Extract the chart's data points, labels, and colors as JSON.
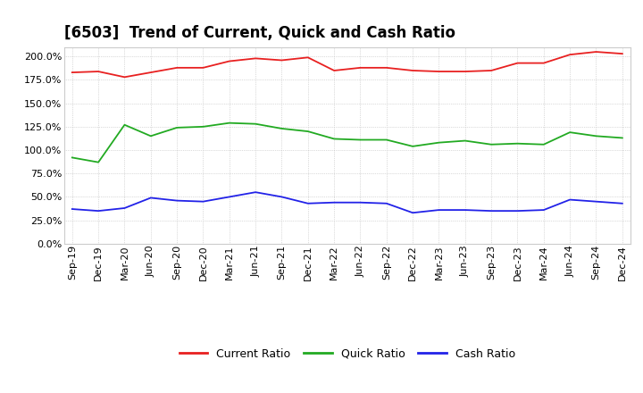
{
  "title": "[6503]  Trend of Current, Quick and Cash Ratio",
  "x_labels": [
    "Sep-19",
    "Dec-19",
    "Mar-20",
    "Jun-20",
    "Sep-20",
    "Dec-20",
    "Mar-21",
    "Jun-21",
    "Sep-21",
    "Dec-21",
    "Mar-22",
    "Jun-22",
    "Sep-22",
    "Dec-22",
    "Mar-23",
    "Jun-23",
    "Sep-23",
    "Dec-23",
    "Mar-24",
    "Jun-24",
    "Sep-24",
    "Dec-24"
  ],
  "current_ratio": [
    183,
    184,
    178,
    183,
    188,
    188,
    195,
    198,
    196,
    199,
    185,
    188,
    188,
    185,
    184,
    184,
    185,
    193,
    193,
    202,
    205,
    203
  ],
  "quick_ratio": [
    92,
    87,
    127,
    115,
    124,
    125,
    129,
    128,
    123,
    120,
    112,
    111,
    111,
    104,
    108,
    110,
    106,
    107,
    106,
    119,
    115,
    113
  ],
  "cash_ratio": [
    37,
    35,
    38,
    49,
    46,
    45,
    50,
    55,
    50,
    43,
    44,
    44,
    43,
    33,
    36,
    36,
    35,
    35,
    36,
    47,
    45,
    43
  ],
  "current_color": "#e82020",
  "quick_color": "#22aa22",
  "cash_color": "#2222e8",
  "bg_color": "#ffffff",
  "plot_bg_color": "#ffffff",
  "ylim": [
    0,
    210
  ],
  "yticks": [
    0,
    25,
    50,
    75,
    100,
    125,
    150,
    175,
    200
  ],
  "grid_color": "#bbbbbb",
  "legend_labels": [
    "Current Ratio",
    "Quick Ratio",
    "Cash Ratio"
  ],
  "title_fontsize": 12,
  "tick_fontsize": 8,
  "legend_fontsize": 9
}
